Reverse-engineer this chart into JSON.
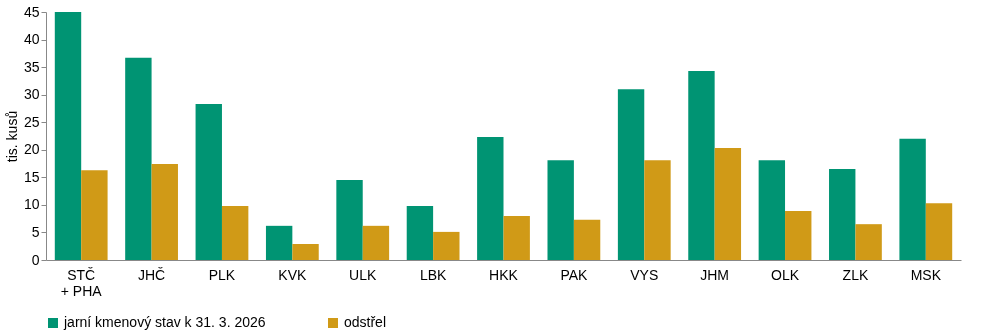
{
  "chart_data": {
    "type": "bar",
    "ylabel": "tis. kusů",
    "categories": [
      "STČ\n+ PHA",
      "JHČ",
      "PLK",
      "KVK",
      "ULK",
      "LBK",
      "HKK",
      "PAK",
      "VYS",
      "JHM",
      "OLK",
      "ZLK",
      "MSK"
    ],
    "series": [
      {
        "name": "jarní kmenový stav k 31. 3. 2026",
        "color": "#009473",
        "values": [
          45,
          36.7,
          28.3,
          6.2,
          14.5,
          9.8,
          22.3,
          18.1,
          31.0,
          34.3,
          18.1,
          16.5,
          22.0
        ]
      },
      {
        "name": "odstřel",
        "color": "#d09a17",
        "values": [
          16.3,
          17.4,
          9.8,
          2.9,
          6.2,
          5.1,
          8.0,
          7.3,
          18.1,
          20.3,
          8.9,
          6.5,
          10.3
        ]
      }
    ],
    "ylim": [
      0,
      45
    ],
    "yticks": [
      0,
      5,
      10,
      15,
      20,
      25,
      30,
      35,
      40,
      45
    ],
    "grid": false,
    "legend": "bottom"
  }
}
